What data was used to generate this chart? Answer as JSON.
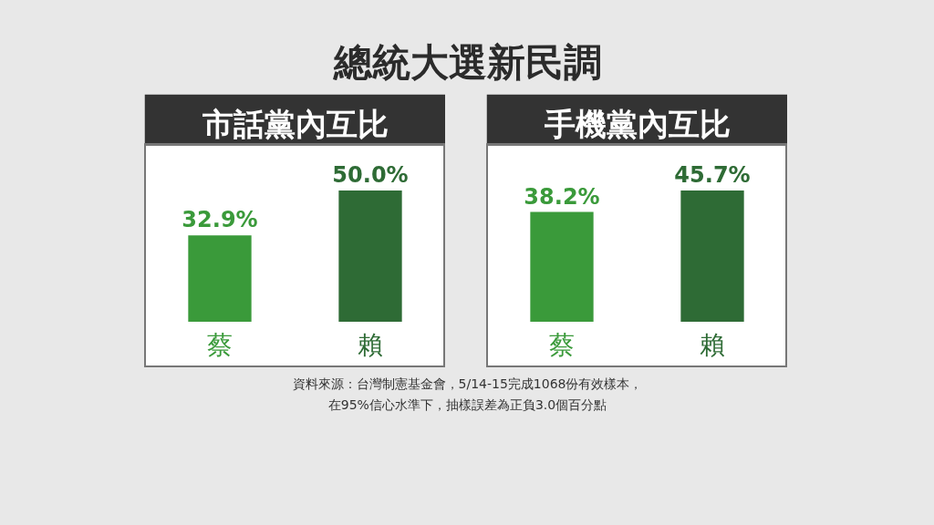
{
  "chart_data": [
    {
      "type": "other",
      "title": "總統大選新民調"
    },
    {
      "type": "bar",
      "title": "市話黨內互比",
      "categories": [
        "蔡",
        "賴"
      ],
      "values": [
        32.9,
        50.0
      ],
      "colors": [
        "#3a9a3a",
        "#2e6b35"
      ],
      "value_labels": [
        "32.9%",
        "50.0%"
      ]
    },
    {
      "type": "bar",
      "title": "手機黨內互比",
      "categories": [
        "蔡",
        "賴"
      ],
      "values": [
        38.2,
        45.7
      ],
      "colors": [
        "#3a9a3a",
        "#2e6b35"
      ],
      "value_labels": [
        "38.2%",
        "45.7%"
      ]
    },
    {
      "type": "other",
      "annotations": [
        "資料來源：台灣制憲基金會，5/14-15完成1068份有效樣本，",
        "在95%信心水準下，抽樣誤差為正負3.0個百分點"
      ]
    }
  ]
}
